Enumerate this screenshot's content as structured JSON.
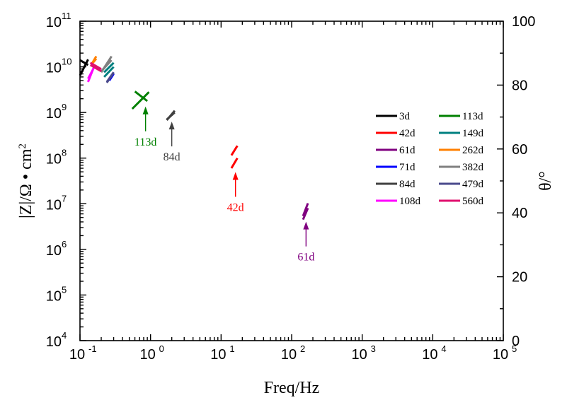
{
  "chart_data": {
    "type": "line",
    "xlabel": "Freq/Hz",
    "ylabel_left": "|Z|/Ω • cm",
    "ylabel_left_sup": "2",
    "ylabel_right": "θ/°",
    "x_scale": "log",
    "y_scale_left": "log",
    "xlim": [
      0.1,
      100000
    ],
    "ylim_left": [
      10000,
      100000000000
    ],
    "ylim_right": [
      0,
      100
    ],
    "x_ticks": [
      {
        "base": "10",
        "exp": "-1"
      },
      {
        "base": "10",
        "exp": "0"
      },
      {
        "base": "10",
        "exp": "1"
      },
      {
        "base": "10",
        "exp": "2"
      },
      {
        "base": "10",
        "exp": "3"
      },
      {
        "base": "10",
        "exp": "4"
      },
      {
        "base": "10",
        "exp": "5"
      }
    ],
    "y_ticks_left": [
      {
        "base": "10",
        "exp": "4"
      },
      {
        "base": "10",
        "exp": "5"
      },
      {
        "base": "10",
        "exp": "6"
      },
      {
        "base": "10",
        "exp": "7"
      },
      {
        "base": "10",
        "exp": "8"
      },
      {
        "base": "10",
        "exp": "9"
      },
      {
        "base": "10",
        "exp": "10"
      },
      {
        "base": "10",
        "exp": "11"
      }
    ],
    "y_ticks_right": [
      "0",
      "20",
      "40",
      "60",
      "80",
      "100"
    ],
    "legend_position": "right",
    "series": [
      {
        "name": "3d",
        "color": "#000000",
        "impedance": [
          [
            0.1,
            14000000000
          ],
          [
            0.13,
            11000000000
          ]
        ],
        "phase": [
          [
            0.1,
            83
          ],
          [
            0.13,
            88
          ]
        ]
      },
      {
        "name": "42d",
        "color": "#ff0000",
        "impedance": [
          [
            14,
            60000000
          ],
          [
            17,
            100000000
          ]
        ],
        "phase": [
          [
            14,
            58
          ],
          [
            17,
            61
          ]
        ]
      },
      {
        "name": "61d",
        "color": "#800080",
        "impedance": [
          [
            145,
            4500000
          ],
          [
            170,
            8000000
          ]
        ],
        "phase": [
          [
            145,
            39
          ],
          [
            170,
            43
          ]
        ]
      },
      {
        "name": "71d",
        "color": "#0000ff",
        "impedance": [
          [
            0.26,
            5000000000
          ],
          [
            0.3,
            7000000000
          ]
        ],
        "phase": [
          [
            0.26,
            82
          ],
          [
            0.3,
            84
          ]
        ]
      },
      {
        "name": "84d",
        "color": "#404040",
        "impedance": [
          [
            1.7,
            700000000
          ],
          [
            2.2,
            1000000000
          ]
        ],
        "phase": [
          [
            1.7,
            69
          ],
          [
            2.2,
            72
          ]
        ]
      },
      {
        "name": "108d",
        "color": "#ff00ff",
        "impedance": [
          [
            0.13,
            5500000000
          ],
          [
            0.16,
            10000000000
          ]
        ],
        "phase": [
          [
            0.13,
            81
          ],
          [
            0.16,
            86
          ]
        ]
      },
      {
        "name": "113d",
        "color": "#008000",
        "impedance": [
          [
            0.55,
            1200000000
          ],
          [
            0.95,
            2800000000
          ]
        ],
        "phase": [
          [
            0.6,
            78
          ],
          [
            0.9,
            75
          ]
        ]
      },
      {
        "name": "149d",
        "color": "#008080",
        "impedance": [
          [
            0.22,
            6000000000
          ],
          [
            0.3,
            10000000000
          ]
        ],
        "phase": [
          [
            0.22,
            84
          ],
          [
            0.3,
            87
          ]
        ]
      },
      {
        "name": "262d",
        "color": "#ff8000",
        "impedance": [
          [
            0.15,
            12000000000
          ],
          [
            0.17,
            15000000000
          ]
        ],
        "phase": [
          [
            0.15,
            87
          ],
          [
            0.17,
            89
          ]
        ]
      },
      {
        "name": "382d",
        "color": "#808080",
        "impedance": [
          [
            0.2,
            8000000000
          ],
          [
            0.28,
            14000000000
          ]
        ],
        "phase": [
          [
            0.2,
            84
          ],
          [
            0.28,
            89
          ]
        ]
      },
      {
        "name": "479d",
        "color": "#4a4a8c",
        "impedance": [
          [
            0.24,
            4500000000
          ],
          [
            0.3,
            7500000000
          ]
        ],
        "phase": [
          [
            0.24,
            81
          ],
          [
            0.3,
            84
          ]
        ]
      },
      {
        "name": "560d",
        "color": "#e0106e",
        "impedance": [
          [
            0.14,
            11000000000
          ],
          [
            0.2,
            8000000000
          ]
        ],
        "phase": [
          [
            0.14,
            87
          ],
          [
            0.2,
            85
          ]
        ]
      }
    ],
    "annotations": [
      {
        "text": "113d",
        "color": "#008000",
        "x": 0.85,
        "y": 1500000000
      },
      {
        "text": "84d",
        "color": "#404040",
        "x": 2.0,
        "y": 700000000
      },
      {
        "text": "42d",
        "color": "#ff0000",
        "x": 16,
        "y": 55000000
      },
      {
        "text": "61d",
        "color": "#800080",
        "x": 160,
        "y": 4500000
      }
    ]
  }
}
